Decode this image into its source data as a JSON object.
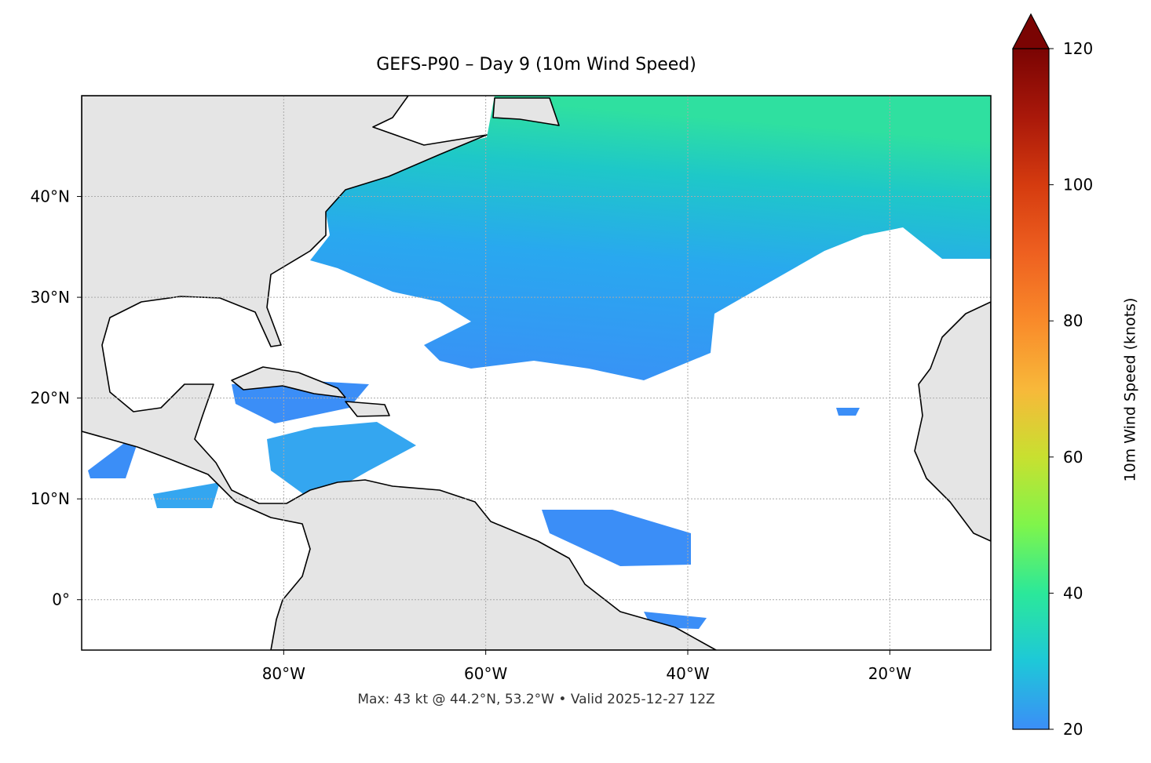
{
  "chart_data": {
    "type": "map",
    "title": "GEFS-P90 – Day 9 (10m Wind Speed)",
    "annotation": "Max: 43 kt @ 44.2°N, 53.2°W • Valid 2025-12-27 12Z",
    "xlim": [
      -100,
      -10
    ],
    "ylim": [
      -5,
      50
    ],
    "xticks": [
      {
        "value": -80,
        "label": "80°W"
      },
      {
        "value": -60,
        "label": "60°W"
      },
      {
        "value": -40,
        "label": "40°W"
      },
      {
        "value": -20,
        "label": "20°W"
      }
    ],
    "yticks": [
      {
        "value": 0,
        "label": "0°"
      },
      {
        "value": 10,
        "label": "10°N"
      },
      {
        "value": 20,
        "label": "20°N"
      },
      {
        "value": 30,
        "label": "30°N"
      },
      {
        "value": 40,
        "label": "40°N"
      }
    ],
    "grid": true,
    "colorbar": {
      "label": "10m Wind Speed (knots)",
      "lim": [
        20,
        120
      ],
      "ticks": [
        20,
        40,
        60,
        80,
        100,
        120
      ],
      "colors": [
        "#3b8ef7",
        "#1ec8d8",
        "#2be89a",
        "#7ff54b",
        "#c8e030",
        "#f8b83a",
        "#f98a2a",
        "#ee6020",
        "#d53b0f",
        "#a9180a",
        "#7a0403"
      ]
    }
  }
}
